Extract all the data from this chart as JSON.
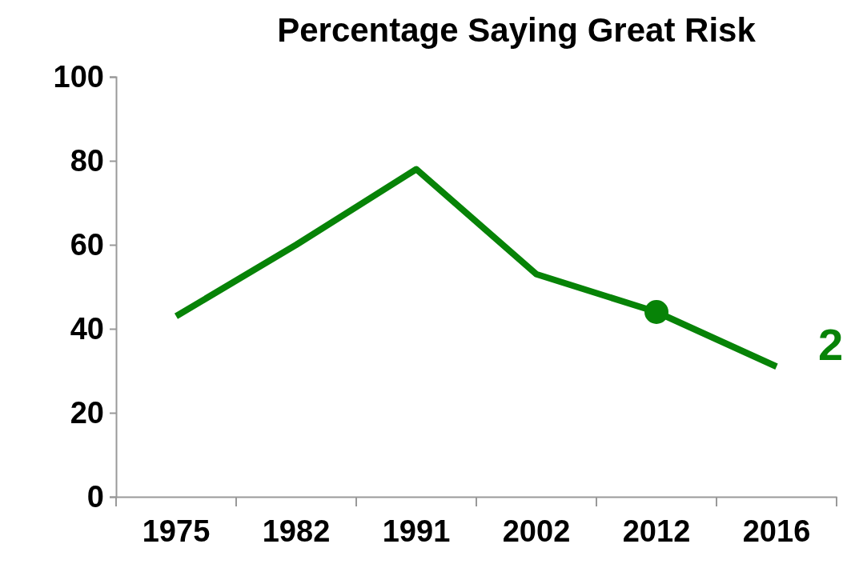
{
  "chart_data": {
    "type": "line",
    "title": "Percentage Saying Great Risk",
    "categories": [
      "1975",
      "1982",
      "1991",
      "2002",
      "2012",
      "2016"
    ],
    "series": [
      {
        "color": "#078307",
        "values": [
          43,
          60,
          78,
          53,
          44,
          31
        ]
      },
      {
        "type": "scatter",
        "color": "#078307",
        "values": [
          null,
          null,
          null,
          null,
          44,
          null
        ]
      }
    ],
    "ylim": [
      0,
      100
    ],
    "yticks": [
      0,
      20,
      40,
      60,
      80,
      100
    ],
    "grid": false,
    "annotations": [
      "2"
    ]
  }
}
